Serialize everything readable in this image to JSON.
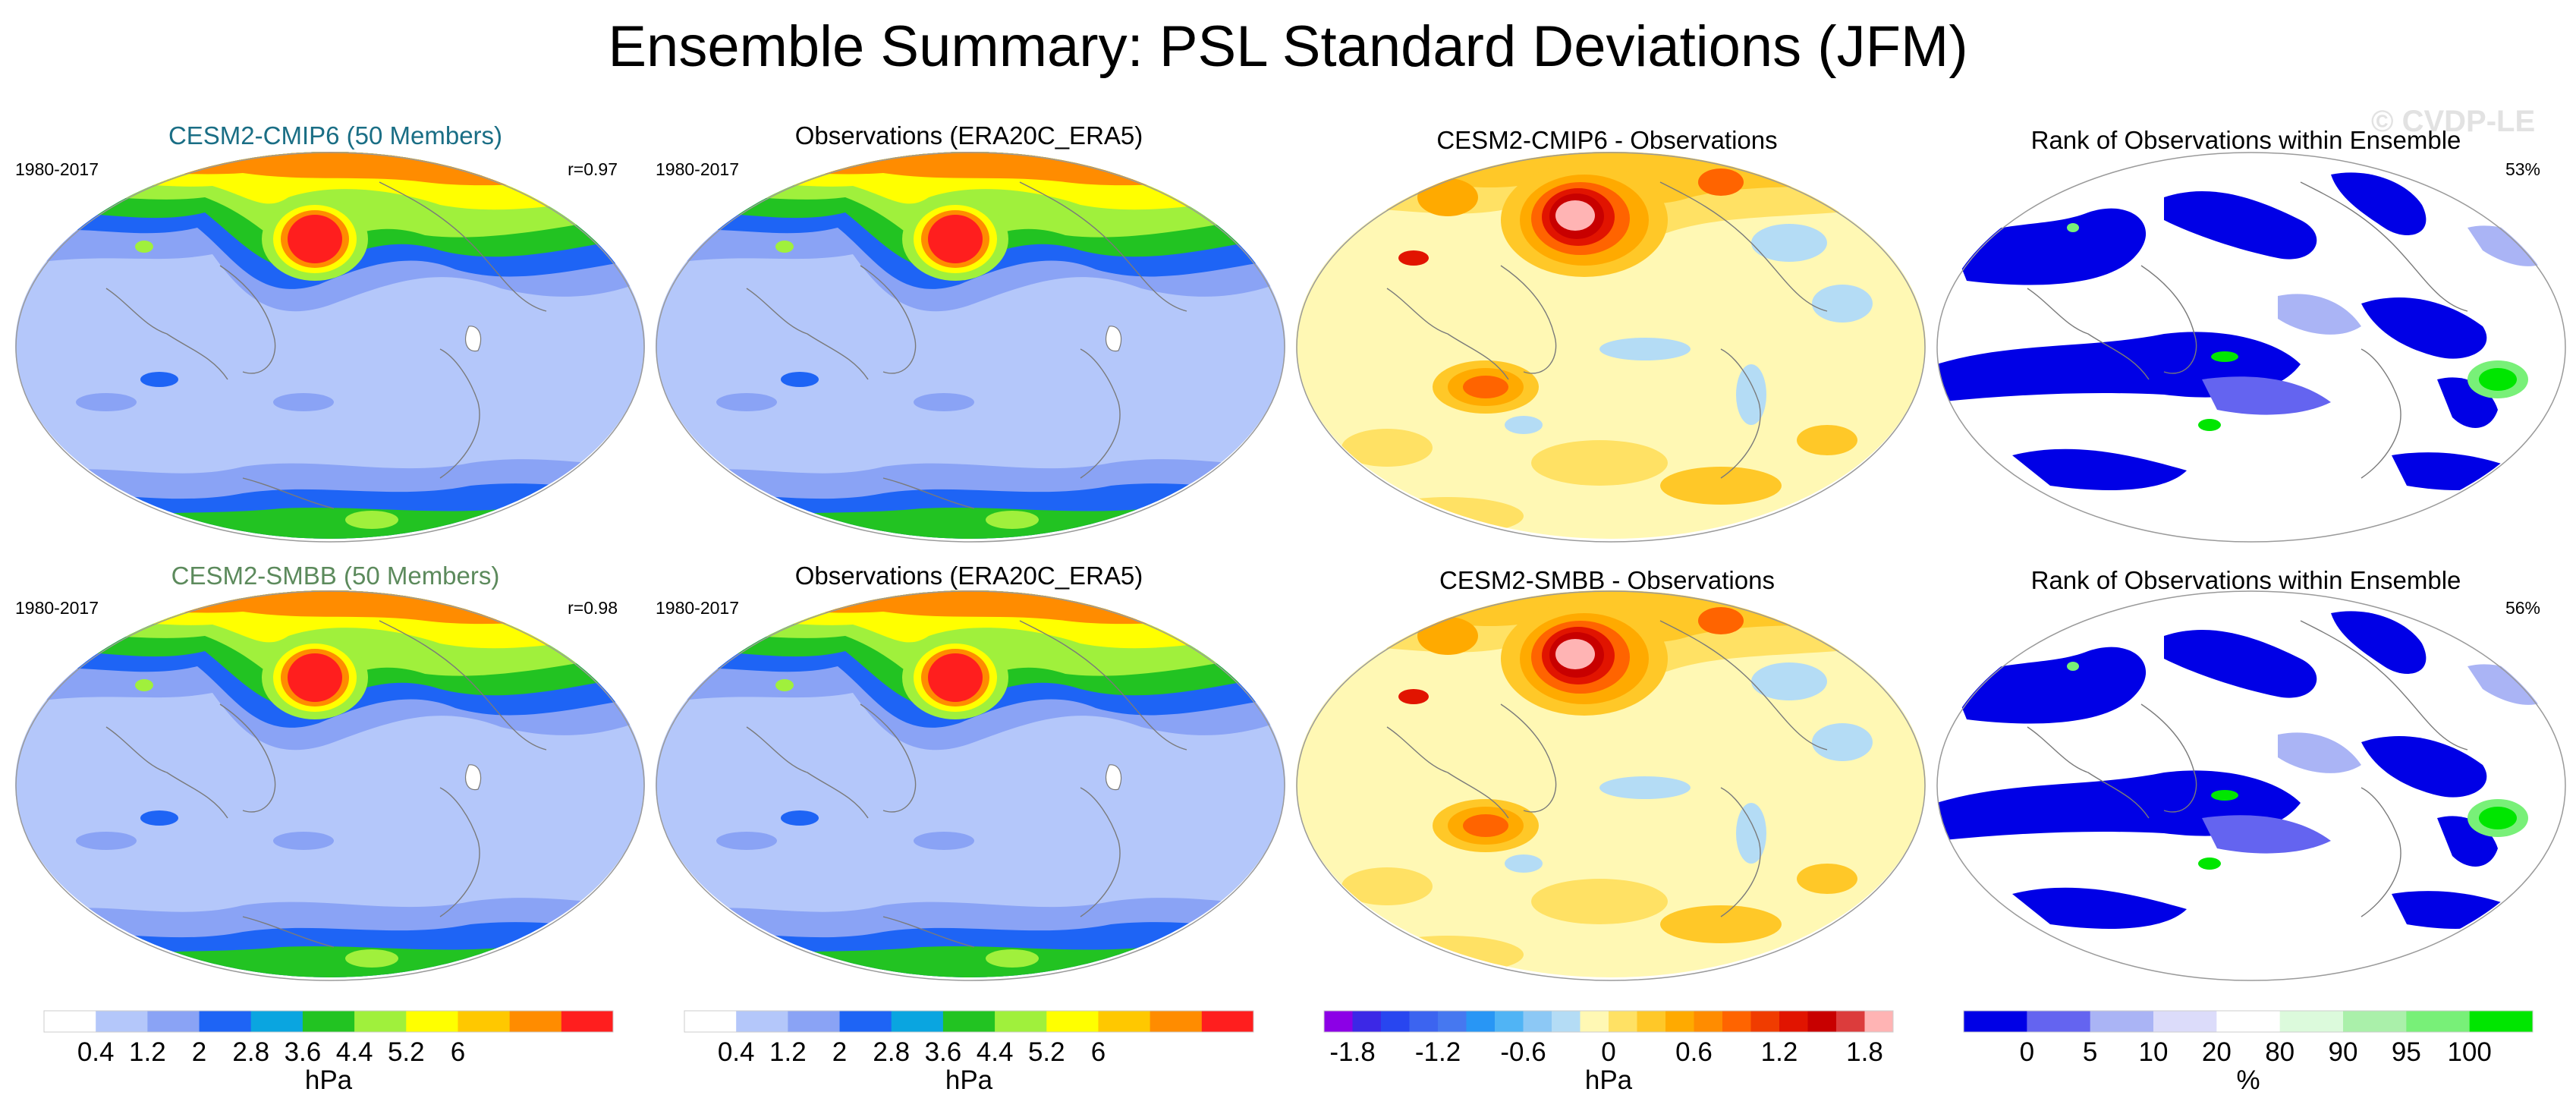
{
  "title": "Ensemble Summary: PSL Standard Deviations (JFM)",
  "watermark": "© CVDP-LE",
  "colors": {
    "cmip6_title": "#1a6e85",
    "smbb_title": "#5c8a5c",
    "land_outline": "#7a7a7a"
  },
  "rows": [
    {
      "panels": [
        {
          "title": "CESM2-CMIP6 (50 Members)",
          "left": "1980-2017",
          "right": "r=0.97",
          "kind": "std"
        },
        {
          "title": "Observations (ERA20C_ERA5)",
          "left": "1980-2017",
          "right": "",
          "kind": "std"
        },
        {
          "title": "CESM2-CMIP6 - Observations",
          "left": "",
          "right": "",
          "kind": "diff"
        },
        {
          "title": "Rank of Observations within Ensemble",
          "left": "",
          "right": "53%",
          "kind": "rank"
        }
      ]
    },
    {
      "panels": [
        {
          "title": "CESM2-SMBB (50 Members)",
          "left": "1980-2017",
          "right": "r=0.98",
          "kind": "std"
        },
        {
          "title": "Observations (ERA20C_ERA5)",
          "left": "1980-2017",
          "right": "",
          "kind": "std"
        },
        {
          "title": "CESM2-SMBB - Observations",
          "left": "",
          "right": "",
          "kind": "diff"
        },
        {
          "title": "Rank of Observations within Ensemble",
          "left": "",
          "right": "56%",
          "kind": "rank"
        }
      ]
    }
  ],
  "colorbars": [
    {
      "unit": "hPa",
      "colors": [
        "#ffffff",
        "#b4c7fa",
        "#8aa3f5",
        "#1e64f5",
        "#0aa5e0",
        "#22c322",
        "#a0f03c",
        "#ffff00",
        "#ffc800",
        "#ff8c00",
        "#ff1e1e"
      ],
      "boundaries": [
        "0.4",
        "1.2",
        "2",
        "2.8",
        "3.6",
        "4.4",
        "5.2",
        "6"
      ],
      "boundary_index": [
        1,
        2,
        3,
        4,
        5,
        6,
        7,
        8
      ]
    },
    {
      "unit": "hPa",
      "colors": [
        "#ffffff",
        "#b4c7fa",
        "#8aa3f5",
        "#1e64f5",
        "#0aa5e0",
        "#22c322",
        "#a0f03c",
        "#ffff00",
        "#ffc800",
        "#ff8c00",
        "#ff1e1e"
      ],
      "boundaries": [
        "0.4",
        "1.2",
        "2",
        "2.8",
        "3.6",
        "4.4",
        "5.2",
        "6"
      ],
      "boundary_index": [
        1,
        2,
        3,
        4,
        5,
        6,
        7,
        8
      ]
    },
    {
      "unit": "hPa",
      "colors": [
        "#8c00e6",
        "#3c28e6",
        "#2846f0",
        "#3c64f0",
        "#4678f0",
        "#2896f5",
        "#50b4f5",
        "#8cc8f5",
        "#b4dcf5",
        "#fff8b4",
        "#ffe164",
        "#ffc828",
        "#ffaa00",
        "#ff8c00",
        "#ff6400",
        "#f03c00",
        "#e11400",
        "#c80000",
        "#dc3c3c",
        "#ffb4b4"
      ],
      "boundaries": [
        "-1.8",
        "-1.2",
        "-0.6",
        "0",
        "0.6",
        "1.2",
        "1.8"
      ],
      "boundary_index": [
        1,
        4,
        7,
        10,
        13,
        16,
        19
      ]
    },
    {
      "unit": "%",
      "colors": [
        "#0000e6",
        "#6464f0",
        "#aab4f5",
        "#dcdcfa",
        "#ffffff",
        "#dcfadc",
        "#aaf0aa",
        "#78f078",
        "#00e600"
      ],
      "boundaries": [
        "0",
        "5",
        "10",
        "20",
        "80",
        "90",
        "95",
        "100"
      ],
      "boundary_index": [
        1,
        2,
        3,
        4,
        5,
        6,
        7,
        8
      ]
    }
  ]
}
